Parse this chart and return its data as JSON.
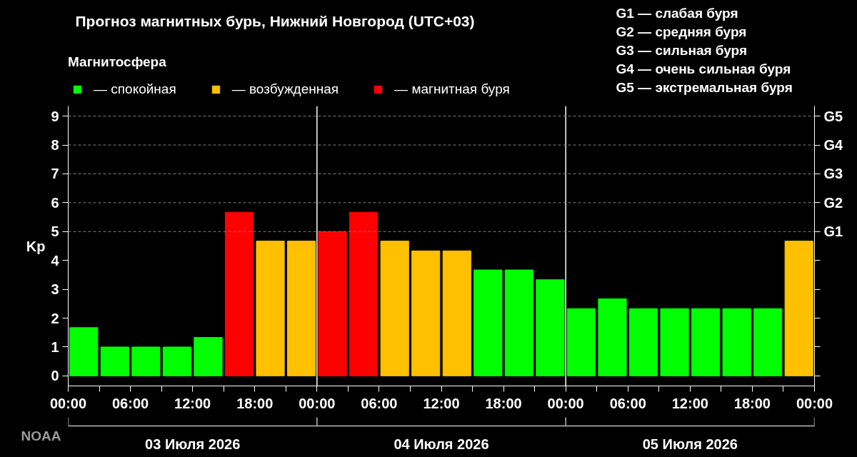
{
  "chart_data": {
    "type": "bar",
    "title": "Прогноз магнитных бурь, Нижний Новгород (UTC+03)",
    "legend_title": "Магнитосфера",
    "ylabel": "Kp",
    "x": [
      "2026-07-03T01:30",
      "2026-07-03T04:30",
      "2026-07-03T07:30",
      "2026-07-03T10:30",
      "2026-07-03T13:30",
      "2026-07-03T16:30",
      "2026-07-03T19:30",
      "2026-07-03T22:30",
      "2026-07-04T01:30",
      "2026-07-04T04:30",
      "2026-07-04T07:30",
      "2026-07-04T10:30",
      "2026-07-04T13:30",
      "2026-07-04T16:30",
      "2026-07-04T19:30",
      "2026-07-04T22:30",
      "2026-07-05T01:30",
      "2026-07-05T04:30",
      "2026-07-05T07:30",
      "2026-07-05T10:30",
      "2026-07-05T13:30",
      "2026-07-05T16:30",
      "2026-07-05T19:30",
      "2026-07-05T22:30"
    ],
    "series": [
      {
        "name": "— спокойная",
        "color": "#00ff00",
        "values": [
          1.67,
          1,
          1,
          1,
          1.33,
          null,
          null,
          null,
          null,
          null,
          null,
          null,
          null,
          3.67,
          3.67,
          3.33,
          2.33,
          2.67,
          2.33,
          2.33,
          2.33,
          2.33,
          2.33,
          null
        ]
      },
      {
        "name": "— возбужденная",
        "color": "#ffc000",
        "values": [
          null,
          null,
          null,
          null,
          null,
          null,
          4.67,
          4.67,
          null,
          null,
          4.67,
          4.33,
          4.33,
          null,
          null,
          null,
          null,
          null,
          null,
          null,
          null,
          null,
          null,
          4.67
        ]
      },
      {
        "name": "— магнитная буря",
        "color": "#ff0000",
        "values": [
          null,
          null,
          null,
          null,
          null,
          5.67,
          null,
          null,
          5,
          5.67,
          null,
          null,
          null,
          null,
          null,
          null,
          null,
          null,
          null,
          null,
          null,
          null,
          null,
          null
        ]
      }
    ],
    "xlim": [
      "2026-07-03T00:00",
      "2026-07-06T00:00"
    ],
    "ylim": [
      -0.35,
      9.35
    ],
    "xticks": [
      {
        "value": "2026-07-03T00:00",
        "label": "00:00"
      },
      {
        "value": "2026-07-03T03:00",
        "label": null
      },
      {
        "value": "2026-07-03T06:00",
        "label": "06:00"
      },
      {
        "value": "2026-07-03T09:00",
        "label": null
      },
      {
        "value": "2026-07-03T12:00",
        "label": "12:00"
      },
      {
        "value": "2026-07-03T15:00",
        "label": null
      },
      {
        "value": "2026-07-03T18:00",
        "label": "18:00"
      },
      {
        "value": "2026-07-03T21:00",
        "label": null
      },
      {
        "value": "2026-07-04T00:00",
        "label": "00:00"
      },
      {
        "value": "2026-07-04T03:00",
        "label": null
      },
      {
        "value": "2026-07-04T06:00",
        "label": "06:00"
      },
      {
        "value": "2026-07-04T09:00",
        "label": null
      },
      {
        "value": "2026-07-04T12:00",
        "label": "12:00"
      },
      {
        "value": "2026-07-04T15:00",
        "label": null
      },
      {
        "value": "2026-07-04T18:00",
        "label": "18:00"
      },
      {
        "value": "2026-07-04T21:00",
        "label": null
      },
      {
        "value": "2026-07-05T00:00",
        "label": "00:00"
      },
      {
        "value": "2026-07-05T03:00",
        "label": null
      },
      {
        "value": "2026-07-05T06:00",
        "label": "06:00"
      },
      {
        "value": "2026-07-05T09:00",
        "label": null
      },
      {
        "value": "2026-07-05T12:00",
        "label": "12:00"
      },
      {
        "value": "2026-07-05T15:00",
        "label": null
      },
      {
        "value": "2026-07-05T18:00",
        "label": "18:00"
      },
      {
        "value": "2026-07-05T21:00",
        "label": null
      },
      {
        "value": "2026-07-06T00:00",
        "label": "00:00"
      }
    ],
    "yticks": [
      0,
      1,
      2,
      3,
      4,
      5,
      6,
      7,
      8,
      9
    ],
    "ref_lines": [
      {
        "axis": "x",
        "value": "2026-07-04T00:00",
        "color": "#ffffff",
        "line_style": "solid"
      },
      {
        "axis": "x",
        "value": "2026-07-05T00:00",
        "color": "#ffffff",
        "line_style": "solid"
      },
      {
        "axis": "y",
        "value": 5,
        "label": "G1",
        "color": "#808080",
        "line_style": "dashed"
      },
      {
        "axis": "y",
        "value": 6,
        "label": "G2",
        "color": "#808080",
        "line_style": "dashed"
      },
      {
        "axis": "y",
        "value": 7,
        "label": "G3",
        "color": "#808080",
        "line_style": "dashed"
      },
      {
        "axis": "y",
        "value": 8,
        "label": "G4",
        "color": "#808080",
        "line_style": "dashed"
      },
      {
        "axis": "y",
        "value": 9,
        "label": "G5",
        "color": "#808080",
        "line_style": "dashed"
      }
    ],
    "annotations": [
      "G1 — слабая буря",
      "G2 — средняя буря",
      "G3 — сильная буря",
      "G4 — очень сильная буря",
      "G5 — экстремальная буря",
      "NOAA",
      "03 Июля 2026",
      "04 Июля 2026",
      "05 Июля 2026"
    ],
    "legend": "top",
    "grid": false
  }
}
